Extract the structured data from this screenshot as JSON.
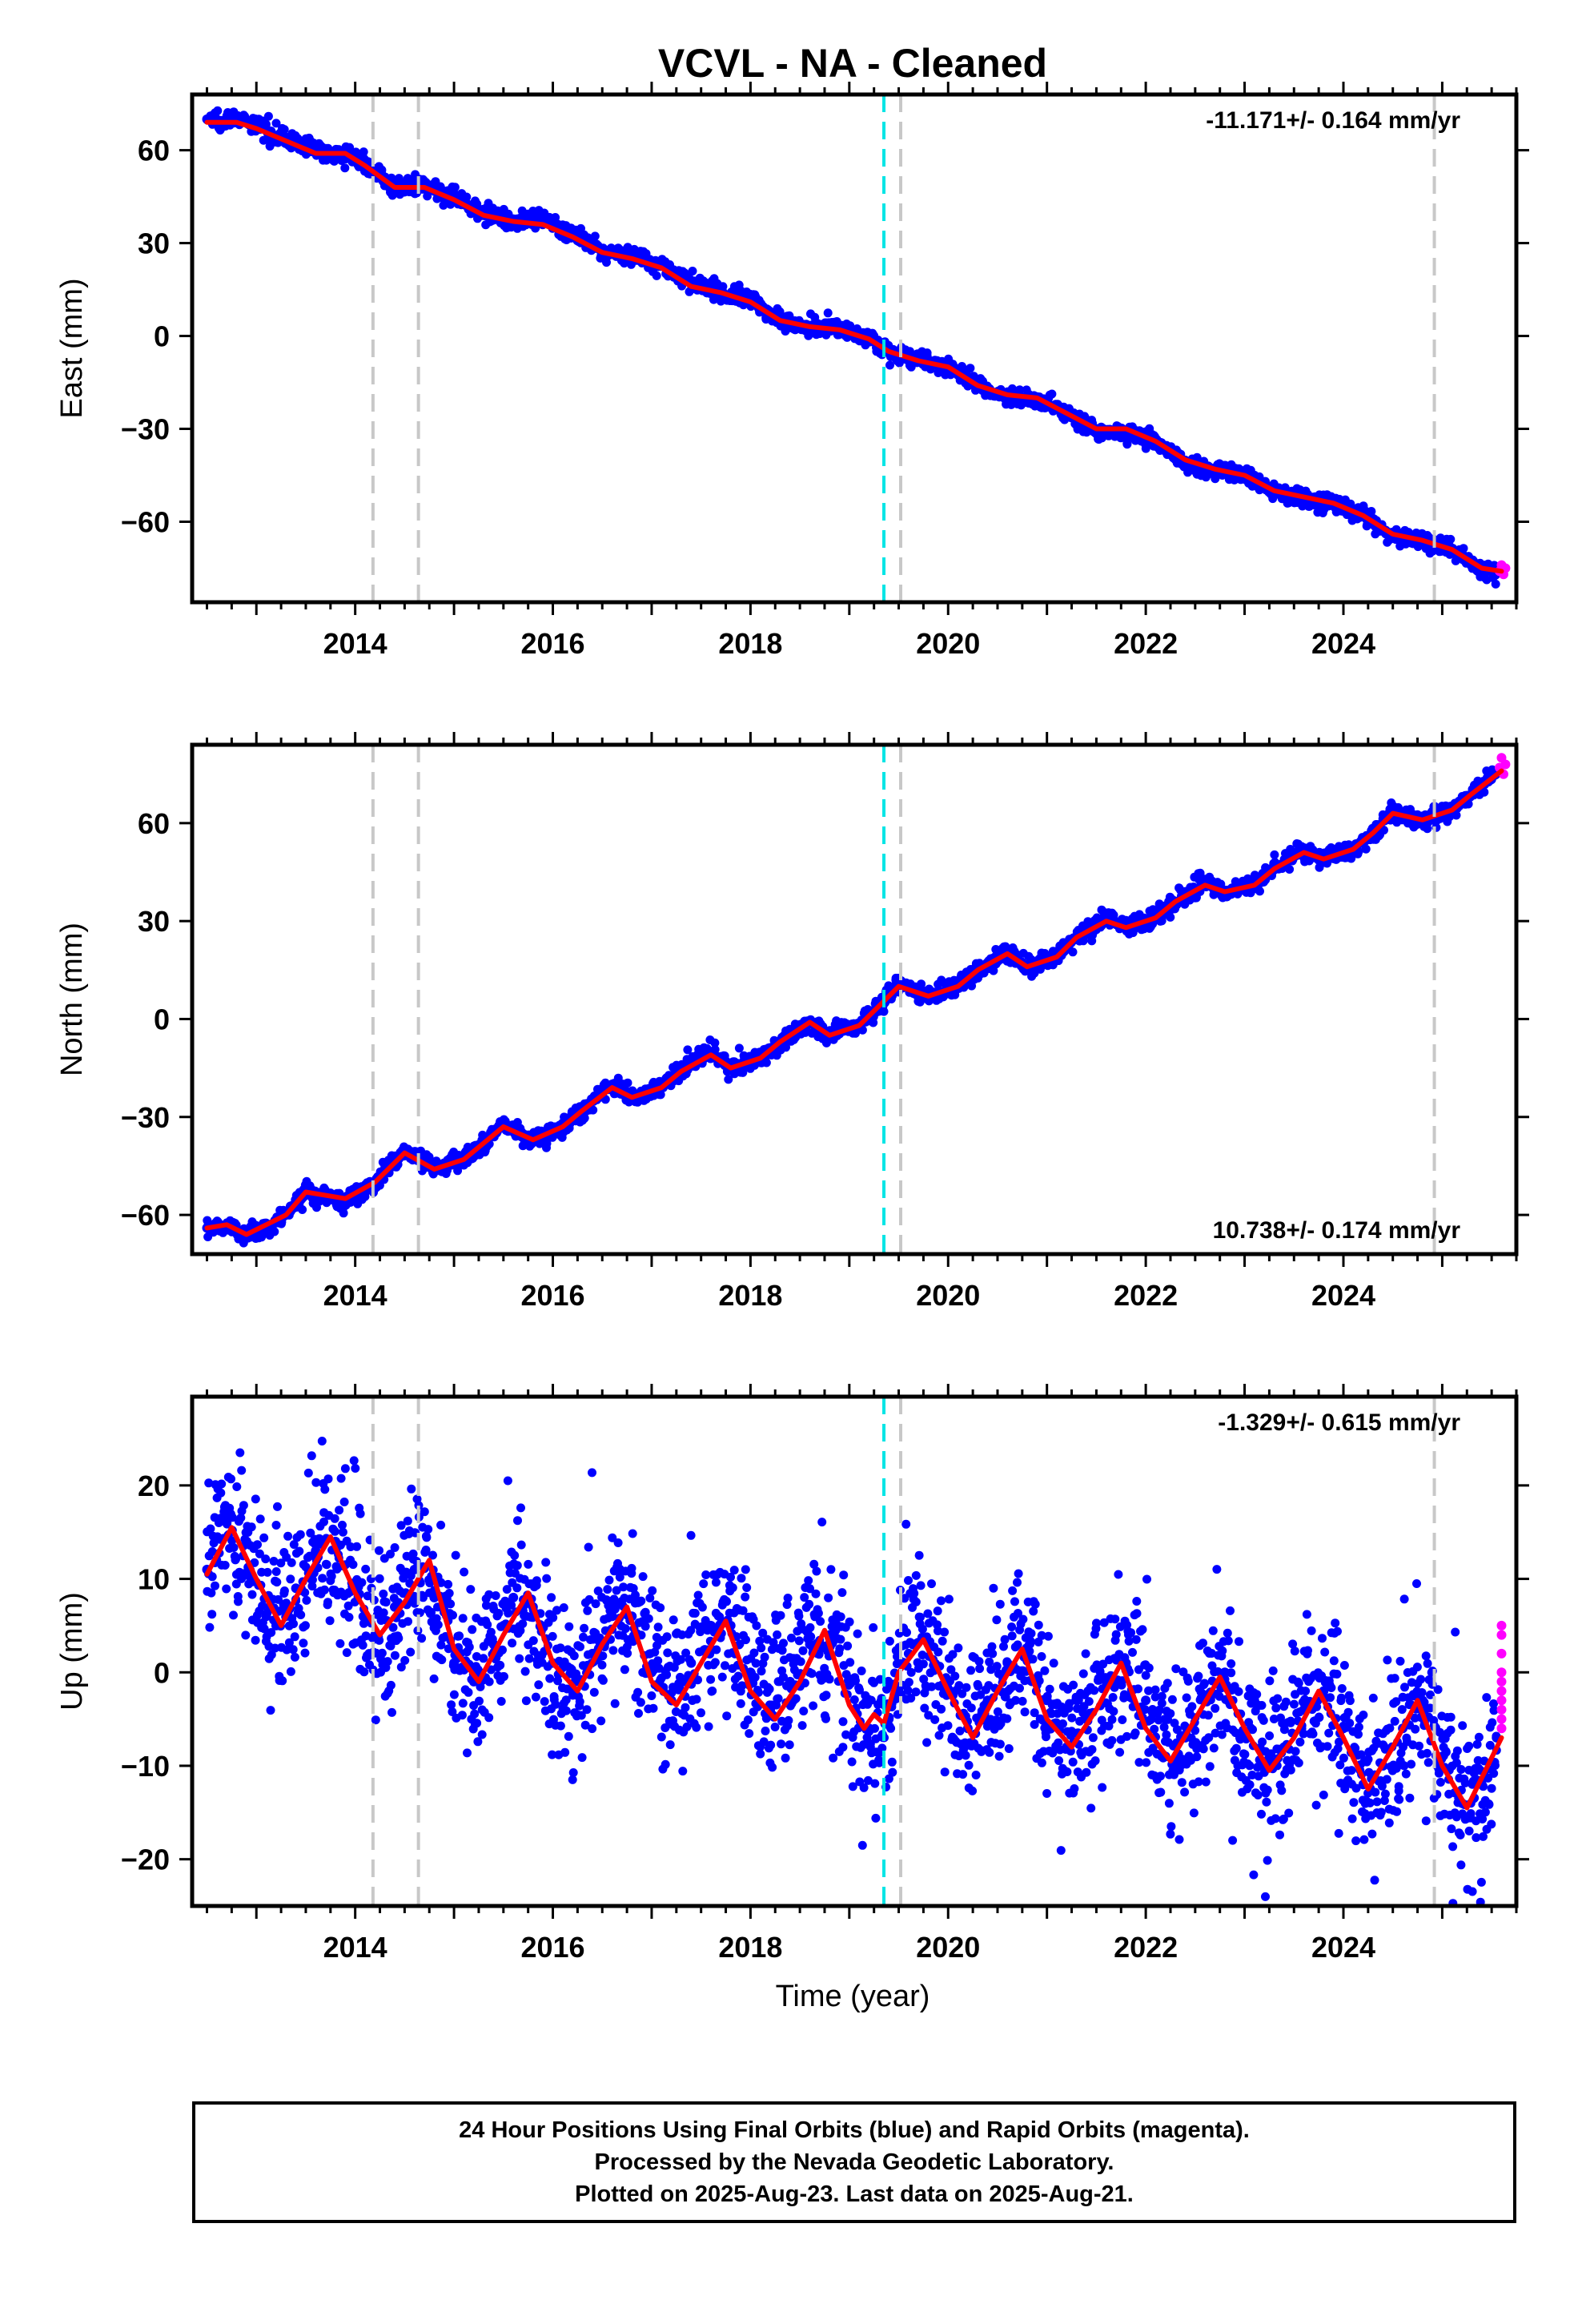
{
  "title": "VCVL  - NA - Cleaned",
  "xlabel": "Time (year)",
  "footer": {
    "line1": "24 Hour Positions Using Final Orbits (blue) and Rapid Orbits (magenta).",
    "line2": "Processed by the Nevada Geodetic Laboratory.",
    "line3": "Plotted on 2025-Aug-23. Last data on 2025-Aug-21."
  },
  "colors": {
    "final_orbits": "#0000ff",
    "rapid_orbits": "#ff00ff",
    "model": "#ff0000",
    "equipment_change": "#c8c8c8",
    "earthquake": "#00e5e5"
  },
  "chart_data": [
    {
      "type": "scatter",
      "panel": "east",
      "ylabel": "East (mm)",
      "ylim": [
        -86,
        78
      ],
      "xlim": [
        2012.35,
        2025.75
      ],
      "xticks": [
        2014,
        2016,
        2018,
        2020,
        2022,
        2024
      ],
      "yticks": [
        -60,
        -30,
        0,
        30,
        60
      ],
      "rate_label": "-11.171+/- 0.164 mm/yr",
      "rate_position": "top-right",
      "series": [
        {
          "role": "final",
          "x": [
            2012.5,
            2012.8,
            2013.0,
            2013.3,
            2013.6,
            2013.9,
            2014.1,
            2014.4,
            2014.7,
            2015.0,
            2015.3,
            2015.6,
            2015.9,
            2016.2,
            2016.5,
            2016.8,
            2017.1,
            2017.4,
            2017.7,
            2018.0,
            2018.3,
            2018.6,
            2018.9,
            2019.2,
            2019.4,
            2019.7,
            2020.0,
            2020.3,
            2020.6,
            2020.9,
            2021.2,
            2021.5,
            2021.8,
            2022.1,
            2022.4,
            2022.7,
            2023.0,
            2023.3,
            2023.6,
            2023.9,
            2024.2,
            2024.5,
            2024.8,
            2025.1,
            2025.4,
            2025.55
          ],
          "y": [
            70,
            70,
            68,
            64,
            60,
            59,
            56,
            48,
            48,
            45,
            40,
            37,
            37,
            33,
            27,
            26,
            23,
            17,
            14,
            12,
            5,
            3,
            3,
            -1,
            -5,
            -8,
            -10,
            -16,
            -20,
            -20,
            -25,
            -31,
            -31,
            -34,
            -41,
            -43,
            -45,
            -50,
            -53,
            -54,
            -58,
            -65,
            -66,
            -69,
            -76,
            -76
          ]
        },
        {
          "role": "rapid",
          "x": [
            2025.58,
            2025.6,
            2025.62,
            2025.64
          ],
          "y": [
            -76,
            -74,
            -77,
            -75
          ]
        },
        {
          "role": "model",
          "x": [
            2012.5,
            2012.8,
            2013.0,
            2013.3,
            2013.6,
            2013.9,
            2014.1,
            2014.4,
            2014.7,
            2015.0,
            2015.3,
            2015.6,
            2015.9,
            2016.2,
            2016.5,
            2016.8,
            2017.1,
            2017.4,
            2017.7,
            2018.0,
            2018.3,
            2018.6,
            2018.9,
            2019.2,
            2019.4,
            2019.7,
            2020.0,
            2020.3,
            2020.6,
            2020.9,
            2021.2,
            2021.5,
            2021.8,
            2022.1,
            2022.4,
            2022.7,
            2023.0,
            2023.3,
            2023.6,
            2023.9,
            2024.2,
            2024.5,
            2024.8,
            2025.1,
            2025.4,
            2025.6
          ],
          "y": [
            69,
            69,
            67,
            63,
            59,
            59,
            55,
            48,
            48,
            44,
            39,
            37,
            36,
            32,
            27,
            25,
            22,
            16,
            14,
            11,
            5,
            3,
            2,
            -1,
            -5,
            -8,
            -10,
            -16,
            -19,
            -20,
            -25,
            -30,
            -30,
            -34,
            -40,
            -43,
            -45,
            -50,
            -52,
            -54,
            -58,
            -64,
            -66,
            -69,
            -75,
            -76
          ]
        }
      ]
    },
    {
      "type": "scatter",
      "panel": "north",
      "ylabel": "North (mm)",
      "ylim": [
        -72,
        84
      ],
      "xlim": [
        2012.35,
        2025.75
      ],
      "xticks": [
        2014,
        2016,
        2018,
        2020,
        2022,
        2024
      ],
      "yticks": [
        -60,
        -30,
        0,
        30,
        60
      ],
      "rate_label": "10.738+/- 0.174 mm/yr",
      "rate_position": "bottom-right",
      "series": [
        {
          "role": "final",
          "x": [
            2012.5,
            2012.7,
            2012.9,
            2013.1,
            2013.3,
            2013.5,
            2013.7,
            2013.9,
            2014.2,
            2014.5,
            2014.8,
            2015.1,
            2015.3,
            2015.5,
            2015.8,
            2016.1,
            2016.3,
            2016.6,
            2016.8,
            2017.1,
            2017.3,
            2017.6,
            2017.8,
            2018.1,
            2018.3,
            2018.6,
            2018.8,
            2019.1,
            2019.3,
            2019.5,
            2019.8,
            2020.1,
            2020.3,
            2020.6,
            2020.8,
            2021.1,
            2021.3,
            2021.6,
            2021.8,
            2022.1,
            2022.3,
            2022.6,
            2022.8,
            2023.1,
            2023.3,
            2023.6,
            2023.8,
            2024.1,
            2024.3,
            2024.5,
            2024.8,
            2025.1,
            2025.3,
            2025.55
          ],
          "y": [
            -64,
            -63,
            -66,
            -64,
            -60,
            -52,
            -54,
            -56,
            -50,
            -40,
            -46,
            -43,
            -38,
            -32,
            -37,
            -33,
            -28,
            -20,
            -24,
            -21,
            -16,
            -10,
            -15,
            -12,
            -7,
            -1,
            -5,
            -2,
            4,
            11,
            7,
            10,
            15,
            21,
            16,
            19,
            25,
            31,
            28,
            31,
            36,
            42,
            39,
            41,
            46,
            52,
            49,
            52,
            57,
            64,
            61,
            64,
            69,
            76
          ]
        },
        {
          "role": "rapid",
          "x": [
            2025.58,
            2025.6,
            2025.62,
            2025.64
          ],
          "y": [
            77,
            80,
            75,
            78
          ]
        },
        {
          "role": "model",
          "x": [
            2012.5,
            2012.7,
            2012.9,
            2013.1,
            2013.3,
            2013.5,
            2013.7,
            2013.9,
            2014.2,
            2014.5,
            2014.8,
            2015.1,
            2015.3,
            2015.5,
            2015.8,
            2016.1,
            2016.3,
            2016.6,
            2016.8,
            2017.1,
            2017.3,
            2017.6,
            2017.8,
            2018.1,
            2018.3,
            2018.6,
            2018.8,
            2019.1,
            2019.3,
            2019.5,
            2019.8,
            2020.1,
            2020.3,
            2020.6,
            2020.8,
            2021.1,
            2021.3,
            2021.6,
            2021.8,
            2022.1,
            2022.3,
            2022.6,
            2022.8,
            2023.1,
            2023.3,
            2023.6,
            2023.8,
            2024.1,
            2024.3,
            2024.5,
            2024.8,
            2025.1,
            2025.3,
            2025.6
          ],
          "y": [
            -64,
            -63,
            -66,
            -63,
            -60,
            -53,
            -54,
            -55,
            -50,
            -41,
            -46,
            -43,
            -38,
            -33,
            -37,
            -33,
            -28,
            -21,
            -24,
            -21,
            -16,
            -11,
            -15,
            -12,
            -7,
            -1,
            -5,
            -2,
            4,
            10,
            7,
            10,
            15,
            20,
            16,
            19,
            25,
            30,
            28,
            31,
            36,
            41,
            39,
            41,
            46,
            51,
            49,
            52,
            57,
            63,
            61,
            64,
            69,
            76
          ]
        }
      ]
    },
    {
      "type": "scatter",
      "panel": "up",
      "ylabel": "Up (mm)",
      "ylim": [
        -25,
        29.5
      ],
      "xlim": [
        2012.35,
        2025.75
      ],
      "xticks": [
        2014,
        2016,
        2018,
        2020,
        2022,
        2024
      ],
      "yticks": [
        -20,
        -10,
        0,
        10,
        20
      ],
      "rate_label": "-1.329+/- 0.615 mm/yr",
      "rate_position": "top-right",
      "series": [
        {
          "role": "final",
          "x": [
            2012.5,
            2012.7,
            2012.9,
            2013.1,
            2013.2,
            2013.4,
            2013.6,
            2013.8,
            2014.0,
            2014.2,
            2014.4,
            2014.6,
            2014.8,
            2015.0,
            2015.2,
            2015.4,
            2015.6,
            2015.8,
            2016.0,
            2016.2,
            2016.4,
            2016.6,
            2016.8,
            2017.0,
            2017.2,
            2017.4,
            2017.6,
            2017.8,
            2018.0,
            2018.2,
            2018.4,
            2018.6,
            2018.8,
            2019.0,
            2019.2,
            2019.4,
            2019.6,
            2019.8,
            2020.0,
            2020.2,
            2020.4,
            2020.6,
            2020.8,
            2021.0,
            2021.2,
            2021.4,
            2021.6,
            2021.8,
            2022.0,
            2022.2,
            2022.4,
            2022.6,
            2022.8,
            2023.0,
            2023.2,
            2023.4,
            2023.6,
            2023.8,
            2024.0,
            2024.2,
            2024.4,
            2024.6,
            2024.8,
            2025.0,
            2025.2,
            2025.4,
            2025.55
          ],
          "y": [
            11,
            16,
            14,
            6,
            5,
            9,
            13,
            14,
            9,
            4,
            7,
            11,
            8,
            1,
            -1,
            3,
            8,
            7,
            1,
            -2,
            2,
            6,
            6,
            0,
            -3,
            1,
            5,
            5,
            0,
            -4,
            -1,
            3,
            4,
            -1,
            -6,
            -5,
            2,
            3,
            -2,
            -6,
            -3,
            1,
            2,
            -3,
            -8,
            -5,
            -1,
            1,
            -3,
            -9,
            -7,
            -3,
            0,
            -7,
            -10,
            -8,
            -4,
            -2,
            -6,
            -12,
            -10,
            -6,
            -3,
            -9,
            -14,
            -12,
            -7
          ]
        },
        {
          "role": "rapid",
          "x": [
            2025.6,
            2025.6,
            2025.6,
            2025.6,
            2025.6,
            2025.6,
            2025.6,
            2025.6,
            2025.6,
            2025.6
          ],
          "y": [
            5,
            4,
            2,
            0,
            -1,
            -2,
            -3,
            -4,
            -5,
            -6
          ]
        },
        {
          "role": "model",
          "x": [
            2012.5,
            2012.75,
            2013.0,
            2013.25,
            2013.5,
            2013.75,
            2014.0,
            2014.25,
            2014.5,
            2014.75,
            2015.0,
            2015.25,
            2015.5,
            2015.75,
            2016.0,
            2016.25,
            2016.5,
            2016.75,
            2017.0,
            2017.25,
            2017.5,
            2017.75,
            2018.0,
            2018.25,
            2018.5,
            2018.75,
            2019.0,
            2019.15,
            2019.25,
            2019.35,
            2019.5,
            2019.75,
            2020.0,
            2020.25,
            2020.5,
            2020.75,
            2021.0,
            2021.25,
            2021.5,
            2021.75,
            2022.0,
            2022.25,
            2022.5,
            2022.75,
            2023.0,
            2023.25,
            2023.5,
            2023.75,
            2024.0,
            2024.25,
            2024.5,
            2024.75,
            2025.0,
            2025.25,
            2025.6
          ],
          "y": [
            10.5,
            15.5,
            10,
            5,
            10,
            14.5,
            8.5,
            4,
            7.5,
            12,
            2.5,
            -1,
            4,
            8.5,
            1,
            -2,
            3,
            7,
            -1,
            -3.5,
            1,
            5.5,
            -2,
            -5,
            -1,
            4.5,
            -3.5,
            -6,
            -4.5,
            -5.5,
            0,
            3.5,
            -2,
            -7,
            -2,
            2.5,
            -5,
            -8,
            -4,
            1,
            -6,
            -9.5,
            -5,
            -0.5,
            -6,
            -10.5,
            -7,
            -2,
            -7,
            -12.5,
            -8,
            -3,
            -10,
            -14.5,
            -7
          ]
        }
      ]
    }
  ],
  "vertical_lines": [
    {
      "x": 2014.18,
      "kind": "equipment"
    },
    {
      "x": 2014.64,
      "kind": "equipment"
    },
    {
      "x": 2019.35,
      "kind": "earthquake"
    },
    {
      "x": 2019.52,
      "kind": "equipment"
    },
    {
      "x": 2024.92,
      "kind": "equipment"
    }
  ]
}
